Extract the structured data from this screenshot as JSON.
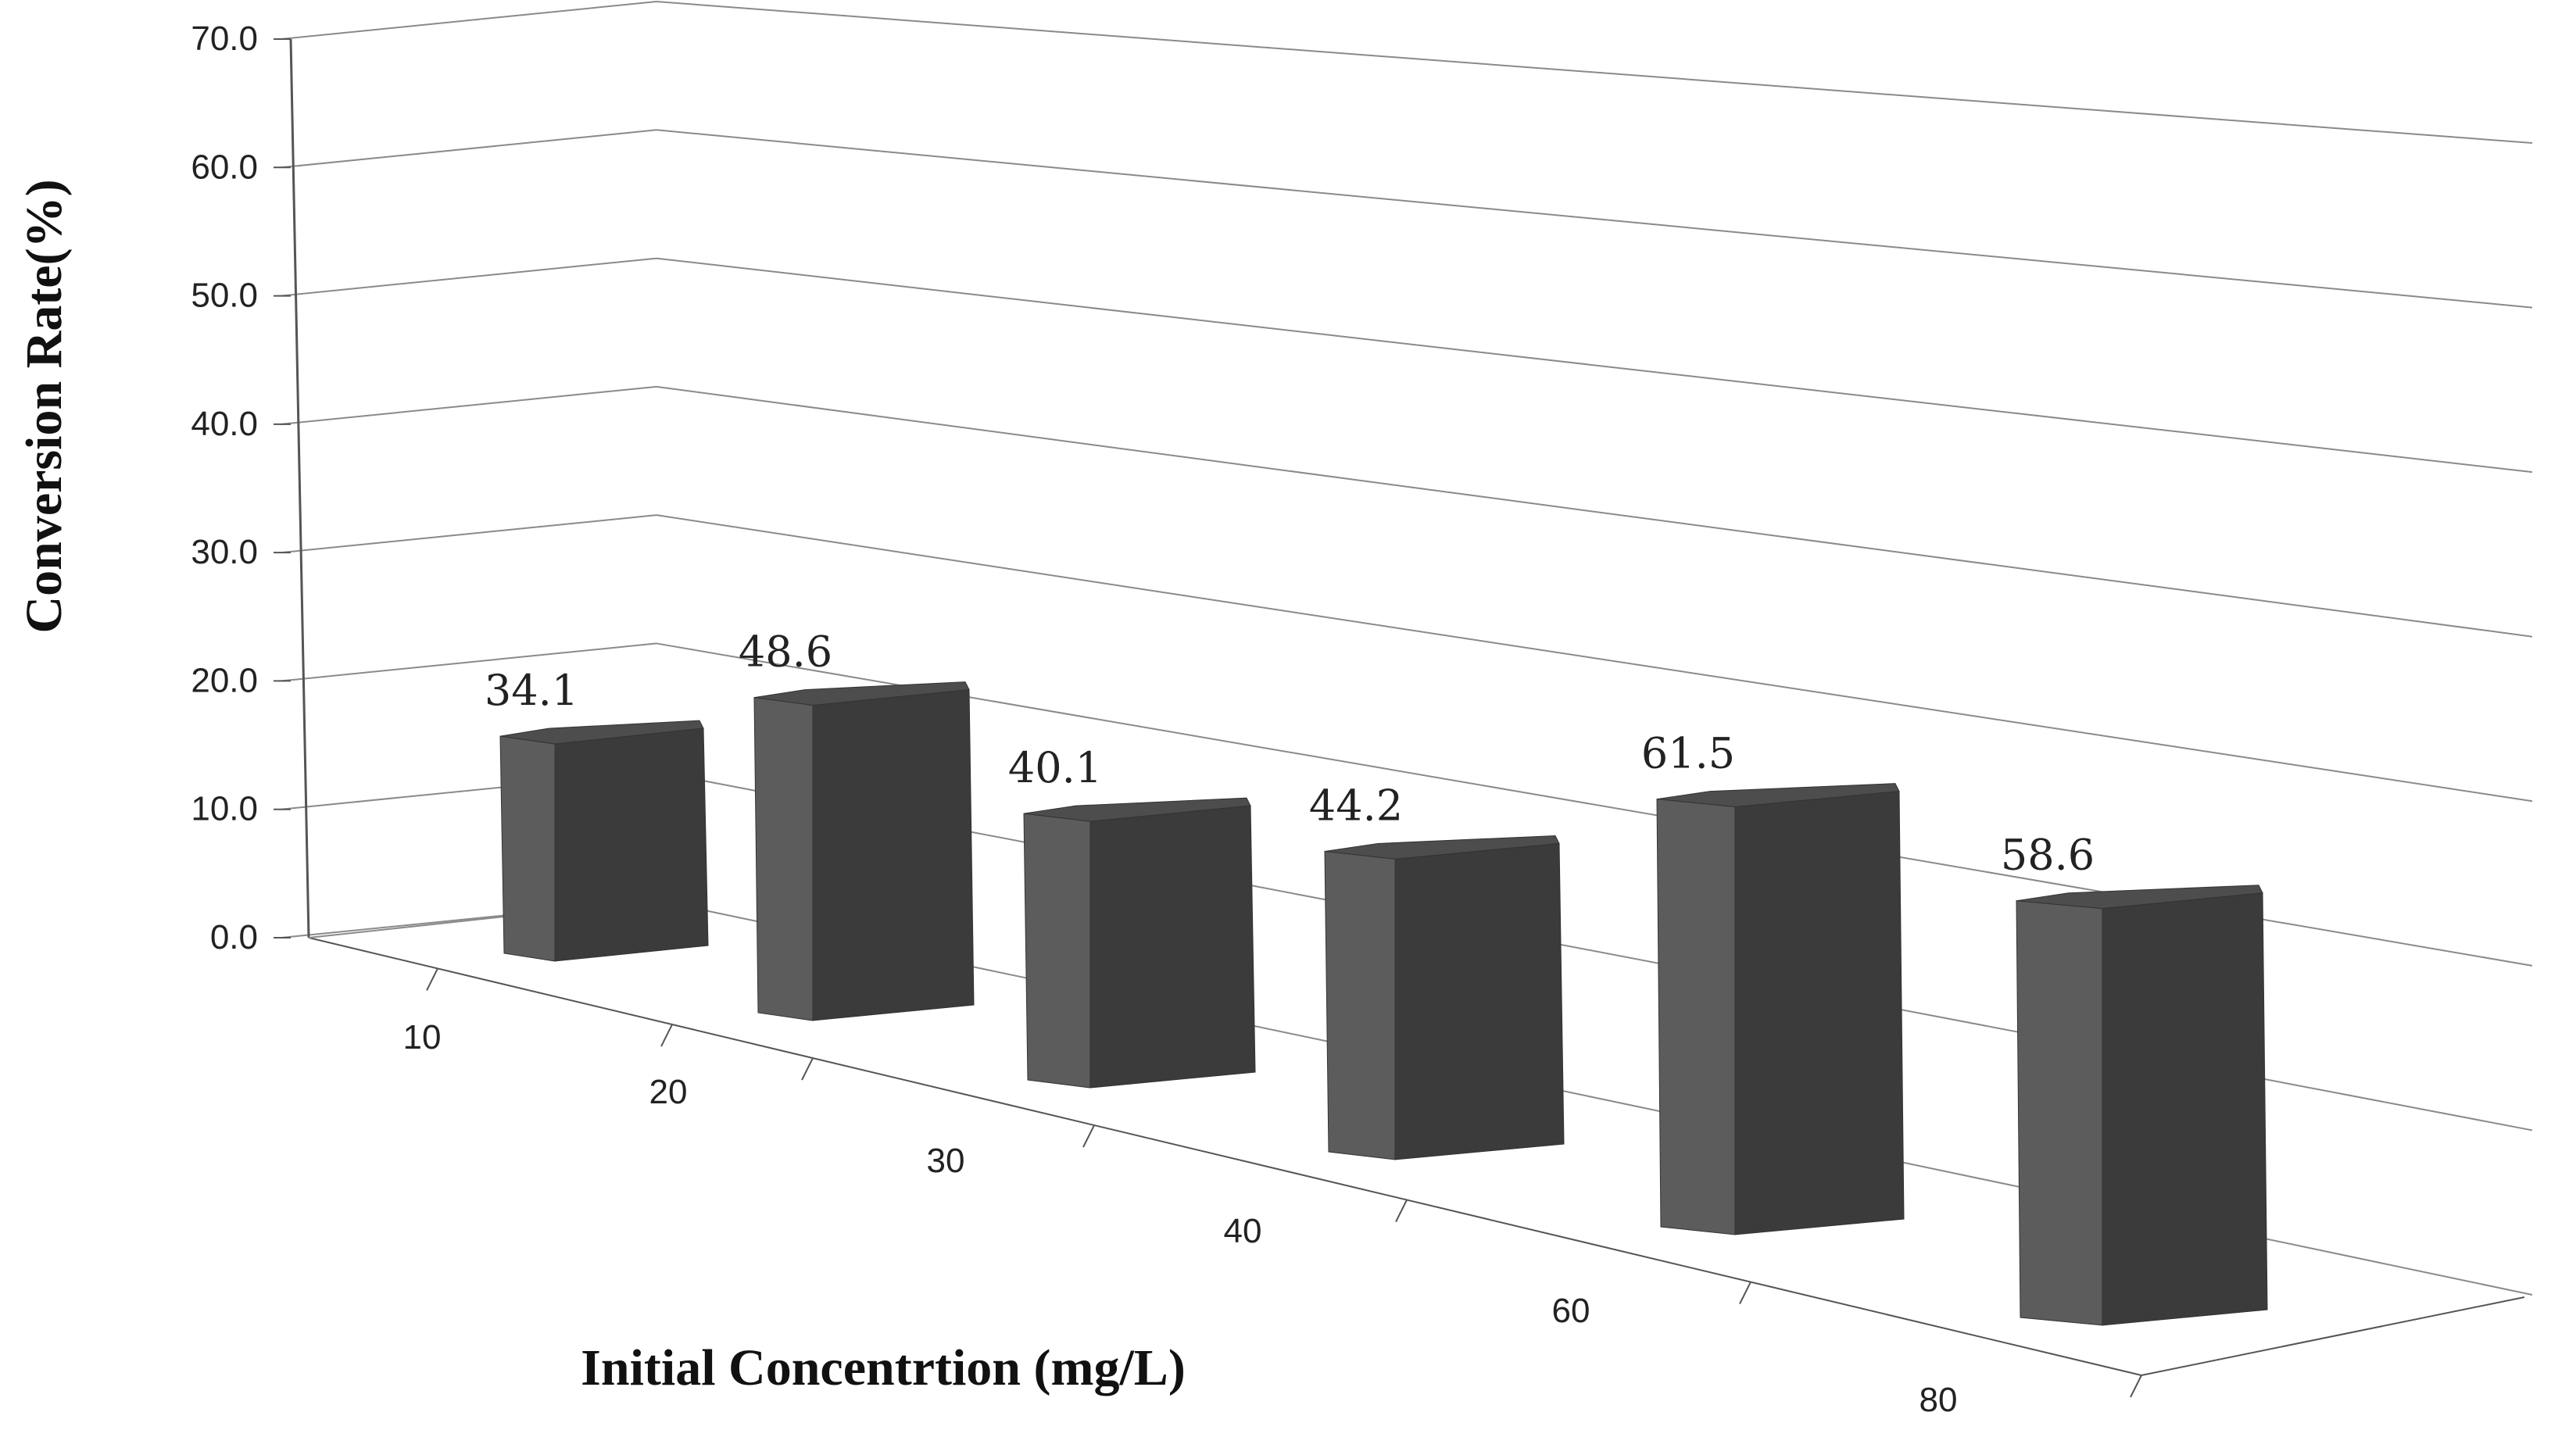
{
  "chart_data": {
    "type": "bar",
    "style": "3d-column",
    "categories": [
      "10",
      "20",
      "30",
      "40",
      "60",
      "80"
    ],
    "values": [
      34.1,
      48.6,
      40.1,
      44.2,
      61.5,
      58.6
    ],
    "data_labels": [
      "34.1",
      "48.6",
      "40.1",
      "44.2",
      "61.5",
      "58.6"
    ],
    "xlabel": "Initial Concentrtion (mg/L)",
    "ylabel": "Conversion Rate(%)",
    "ylim": [
      0,
      70
    ],
    "yticks": [
      "0.0",
      "10.0",
      "20.0",
      "30.0",
      "40.0",
      "50.0",
      "60.0",
      "70.0"
    ],
    "grid": true,
    "legend": "none",
    "colors": {
      "bar_front": "#5c5c5c",
      "bar_side": "#3b3b3b",
      "bar_top": "#4d4d4d",
      "grid": "#8a8a8a",
      "axis": "#555555"
    }
  }
}
